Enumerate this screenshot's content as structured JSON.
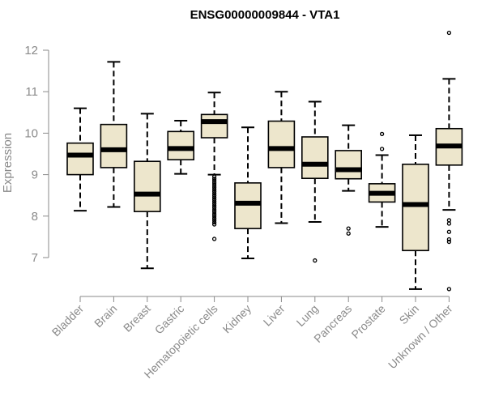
{
  "chart_data": {
    "type": "box",
    "title": "ENSG00000009844 - VTA1",
    "ylabel": "Expression",
    "xlabel": "",
    "ylim": [
      6.1,
      12.6
    ],
    "yticks": [
      7,
      8,
      9,
      10,
      11,
      12
    ],
    "ytick_labels": [
      "7",
      "8",
      "9",
      "10",
      "11",
      "12"
    ],
    "grid": false,
    "box_fill": "#ede6cc",
    "box_stroke": "#000000",
    "axis_color": "#8a8a8a",
    "categories": [
      "Bladder",
      "Brain",
      "Breast",
      "Gastric",
      "Hematopoietic cells",
      "Kidney",
      "Liver",
      "Lung",
      "Pancreas",
      "Prostate",
      "Skin",
      "Unknown / Other"
    ],
    "boxes": [
      {
        "category": "Bladder",
        "whisker_low": 8.13,
        "q1": 9.0,
        "median": 9.47,
        "q3": 9.76,
        "whisker_high": 10.6,
        "outliers": []
      },
      {
        "category": "Brain",
        "whisker_low": 8.22,
        "q1": 9.17,
        "median": 9.6,
        "q3": 10.21,
        "whisker_high": 11.72,
        "outliers": []
      },
      {
        "category": "Breast",
        "whisker_low": 6.74,
        "q1": 8.11,
        "median": 8.53,
        "q3": 9.32,
        "whisker_high": 10.47,
        "outliers": []
      },
      {
        "category": "Gastric",
        "whisker_low": 9.02,
        "q1": 9.36,
        "median": 9.63,
        "q3": 10.04,
        "whisker_high": 10.3,
        "outliers": []
      },
      {
        "category": "Hematopoietic cells",
        "whisker_low": 9.0,
        "q1": 9.89,
        "median": 10.28,
        "q3": 10.45,
        "whisker_high": 10.98,
        "outliers": [
          8.95,
          8.9,
          8.85,
          8.8,
          8.75,
          8.7,
          8.65,
          8.6,
          8.55,
          8.5,
          8.45,
          8.4,
          8.35,
          8.3,
          8.25,
          8.2,
          8.15,
          8.1,
          8.05,
          8.0,
          7.95,
          7.9,
          7.85,
          7.8,
          7.45
        ]
      },
      {
        "category": "Kidney",
        "whisker_low": 6.98,
        "q1": 7.7,
        "median": 8.31,
        "q3": 8.8,
        "whisker_high": 10.14,
        "outliers": []
      },
      {
        "category": "Liver",
        "whisker_low": 7.83,
        "q1": 9.17,
        "median": 9.63,
        "q3": 10.29,
        "whisker_high": 11.0,
        "outliers": []
      },
      {
        "category": "Lung",
        "whisker_low": 7.86,
        "q1": 8.91,
        "median": 9.25,
        "q3": 9.91,
        "whisker_high": 10.76,
        "outliers": [
          6.93
        ]
      },
      {
        "category": "Pancreas",
        "whisker_low": 8.61,
        "q1": 8.9,
        "median": 9.12,
        "q3": 9.58,
        "whisker_high": 10.19,
        "outliers": [
          7.7,
          7.58
        ]
      },
      {
        "category": "Prostate",
        "whisker_low": 7.74,
        "q1": 8.34,
        "median": 8.55,
        "q3": 8.78,
        "whisker_high": 9.47,
        "outliers": [
          9.98,
          9.62
        ]
      },
      {
        "category": "Skin",
        "whisker_low": 6.24,
        "q1": 7.17,
        "median": 8.28,
        "q3": 9.25,
        "whisker_high": 9.95,
        "outliers": []
      },
      {
        "category": "Unknown / Other",
        "whisker_low": 8.15,
        "q1": 9.23,
        "median": 9.69,
        "q3": 10.11,
        "whisker_high": 11.31,
        "outliers": [
          12.42,
          7.9,
          7.82,
          7.62,
          7.44,
          7.38,
          6.24
        ]
      }
    ]
  }
}
